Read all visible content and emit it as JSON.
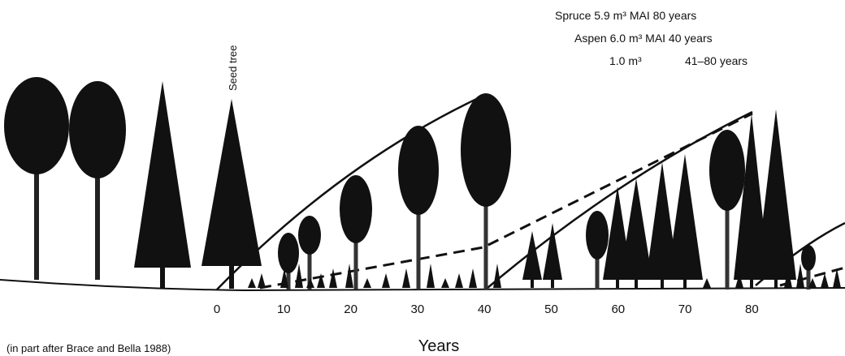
{
  "annotations": {
    "spruce": "Spruce 5.9 m³ MAI 80 years",
    "aspen": "Aspen 6.0 m³ MAI 40 years",
    "understory_volume": "1.0 m³",
    "understory_period": "41–80 years"
  },
  "seed_tree_label": "Seed tree",
  "x_axis": {
    "label": "Years",
    "ticks": [
      0,
      10,
      20,
      30,
      40,
      50,
      60,
      70,
      80
    ]
  },
  "caption": "(in part after Brace and Bella 1988)"
}
